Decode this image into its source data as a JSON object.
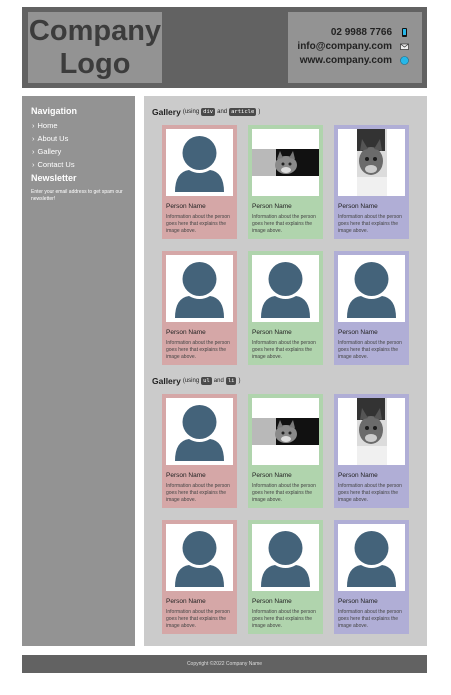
{
  "header": {
    "logo_line1": "Company",
    "logo_line2": "Logo",
    "contact": [
      {
        "text": "02 9988 7766",
        "icon": "phone-icon"
      },
      {
        "text": "info@company.com",
        "icon": "mail-icon"
      },
      {
        "text": "www.company.com",
        "icon": "globe-icon"
      }
    ]
  },
  "sidebar": {
    "nav_title": "Navigation",
    "items": [
      {
        "label": "Home"
      },
      {
        "label": "About Us"
      },
      {
        "label": "Gallery"
      },
      {
        "label": "Contact Us"
      }
    ],
    "newsletter_title": "Newsletter",
    "newsletter_text": "Enter your email address to get spam our newsletter!"
  },
  "galleries": [
    {
      "title": "Gallery",
      "prefix": "(using",
      "code1": "div",
      "joiner": "and",
      "code2": "article",
      "suffix": ")"
    },
    {
      "title": "Gallery",
      "prefix": "(using",
      "code1": "ul",
      "joiner": "and",
      "code2": "li",
      "suffix": ")"
    }
  ],
  "card": {
    "name": "Person Name",
    "desc": "Information about the person goes here that explains the image above."
  },
  "colors": {
    "pink": "#d5a7a7",
    "green": "#b0d4ad",
    "lavender": "#b0aed6",
    "avatar": "#44637a"
  },
  "footer": {
    "copyright": "Copyright ©2022 Company Name"
  }
}
